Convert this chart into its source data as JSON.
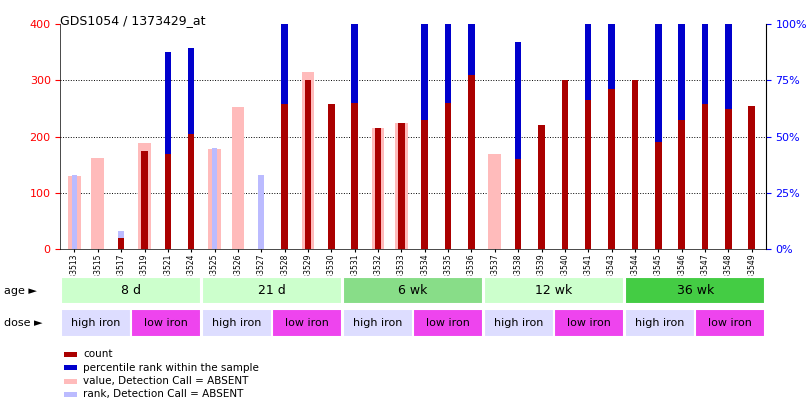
{
  "title": "GDS1054 / 1373429_at",
  "samples": [
    "GSM33513",
    "GSM33515",
    "GSM33517",
    "GSM33519",
    "GSM33521",
    "GSM33524",
    "GSM33525",
    "GSM33526",
    "GSM33527",
    "GSM33528",
    "GSM33529",
    "GSM33530",
    "GSM33531",
    "GSM33532",
    "GSM33533",
    "GSM33534",
    "GSM33535",
    "GSM33536",
    "GSM33537",
    "GSM33538",
    "GSM33539",
    "GSM33540",
    "GSM33541",
    "GSM33543",
    "GSM33544",
    "GSM33545",
    "GSM33546",
    "GSM33547",
    "GSM33548",
    "GSM33549"
  ],
  "count": [
    0,
    0,
    20,
    175,
    170,
    205,
    0,
    0,
    0,
    258,
    300,
    258,
    260,
    215,
    225,
    230,
    260,
    310,
    0,
    160,
    220,
    300,
    265,
    285,
    300,
    190,
    230,
    258,
    250,
    255
  ],
  "rank_pct": [
    0,
    0,
    0,
    0,
    45,
    38,
    0,
    0,
    0,
    58,
    0,
    0,
    58,
    0,
    0,
    62,
    58,
    52,
    0,
    52,
    0,
    0,
    58,
    58,
    0,
    58,
    62,
    60,
    60,
    0
  ],
  "value_absent": [
    130,
    162,
    0,
    188,
    0,
    0,
    178,
    252,
    0,
    0,
    315,
    0,
    0,
    215,
    225,
    0,
    0,
    0,
    170,
    0,
    0,
    0,
    0,
    0,
    0,
    0,
    0,
    0,
    0,
    0
  ],
  "rank_absent_pct": [
    33,
    0,
    8,
    0,
    0,
    0,
    45,
    0,
    33,
    0,
    0,
    0,
    0,
    0,
    0,
    0,
    0,
    0,
    0,
    0,
    0,
    0,
    0,
    0,
    0,
    0,
    0,
    0,
    0,
    0
  ],
  "age_groups": [
    {
      "label": "8 d",
      "start": 0,
      "end": 6,
      "color": "#ccffcc"
    },
    {
      "label": "21 d",
      "start": 6,
      "end": 12,
      "color": "#ccffcc"
    },
    {
      "label": "6 wk",
      "start": 12,
      "end": 18,
      "color": "#88dd88"
    },
    {
      "label": "12 wk",
      "start": 18,
      "end": 24,
      "color": "#ccffcc"
    },
    {
      "label": "36 wk",
      "start": 24,
      "end": 30,
      "color": "#44cc44"
    }
  ],
  "dose_groups": [
    {
      "label": "high iron",
      "start": 0,
      "end": 3,
      "color": "#ddddff"
    },
    {
      "label": "low iron",
      "start": 3,
      "end": 6,
      "color": "#ee44ee"
    },
    {
      "label": "high iron",
      "start": 6,
      "end": 9,
      "color": "#ddddff"
    },
    {
      "label": "low iron",
      "start": 9,
      "end": 12,
      "color": "#ee44ee"
    },
    {
      "label": "high iron",
      "start": 12,
      "end": 15,
      "color": "#ddddff"
    },
    {
      "label": "low iron",
      "start": 15,
      "end": 18,
      "color": "#ee44ee"
    },
    {
      "label": "high iron",
      "start": 18,
      "end": 21,
      "color": "#ddddff"
    },
    {
      "label": "low iron",
      "start": 21,
      "end": 24,
      "color": "#ee44ee"
    },
    {
      "label": "high iron",
      "start": 24,
      "end": 27,
      "color": "#ddddff"
    },
    {
      "label": "low iron",
      "start": 27,
      "end": 30,
      "color": "#ee44ee"
    }
  ],
  "ylim": [
    0,
    400
  ],
  "y2lim": [
    0,
    100
  ],
  "yticks": [
    0,
    100,
    200,
    300,
    400
  ],
  "y2ticks": [
    0,
    25,
    50,
    75,
    100
  ],
  "bar_color_count": "#aa0000",
  "bar_color_rank": "#0000cc",
  "bar_color_value_absent": "#ffbbbb",
  "bar_color_rank_absent": "#bbbbff",
  "bg_color": "#ffffff"
}
